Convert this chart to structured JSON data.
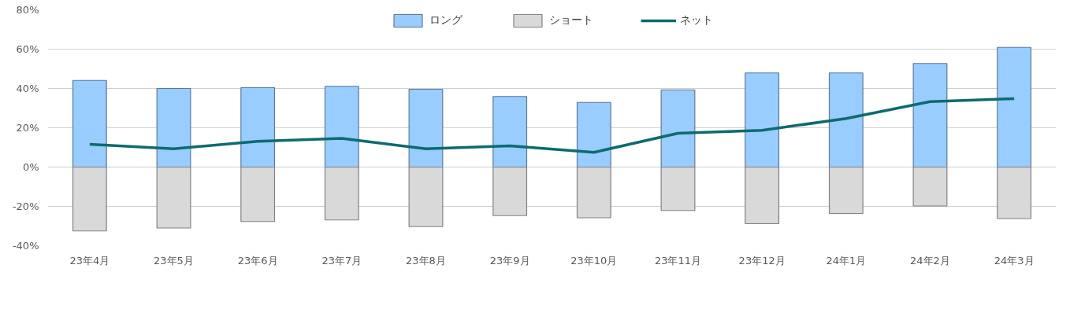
{
  "chart_data": {
    "type": "bar",
    "stacked": true,
    "categories": [
      "23年4月",
      "23年5月",
      "23年6月",
      "23年7月",
      "23年8月",
      "23年9月",
      "23年10月",
      "23年11月",
      "23年12月",
      "24年1月",
      "24年2月",
      "24年3月"
    ],
    "series": [
      {
        "name": "ロング",
        "color": "#99ccff",
        "values": [
          44.1,
          40.0,
          40.4,
          41.1,
          39.6,
          35.9,
          32.9,
          39.3,
          47.9,
          47.9,
          52.7,
          60.9
        ]
      },
      {
        "name": "ショート",
        "color": "#d9d9d9",
        "values": [
          -32.5,
          -31.0,
          -27.7,
          -26.9,
          -30.3,
          -24.7,
          -25.8,
          -22.1,
          -28.8,
          -23.6,
          -19.8,
          -26.2
        ]
      },
      {
        "name": "ネット",
        "type": "line",
        "color": "#0d6b6e",
        "values": [
          11.6,
          9.3,
          13.1,
          14.6,
          9.3,
          10.8,
          7.5,
          17.2,
          18.7,
          24.7,
          33.3,
          34.8
        ]
      }
    ],
    "ylim": [
      -40,
      80
    ],
    "yticks": [
      {
        "value": -40,
        "label": "-40%"
      },
      {
        "value": -20,
        "label": "-20%"
      },
      {
        "value": 0,
        "label": "0%"
      },
      {
        "value": 20,
        "label": "20%"
      },
      {
        "value": 40,
        "label": "40%"
      },
      {
        "value": 60,
        "label": "60%"
      },
      {
        "value": 80,
        "label": "80%"
      }
    ],
    "grid": "y",
    "legend": "top"
  }
}
